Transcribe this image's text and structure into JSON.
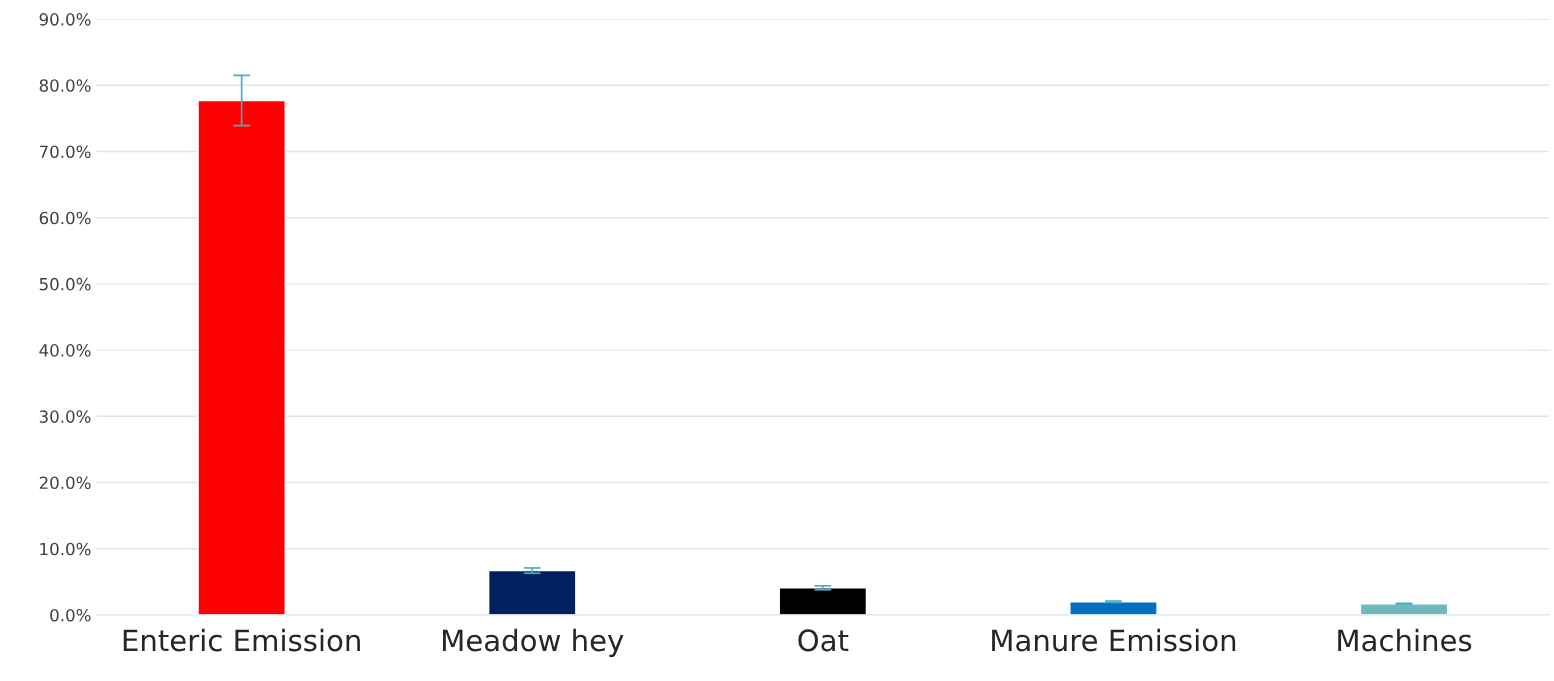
{
  "chart_data": {
    "type": "bar",
    "categories": [
      "Enteric Emission",
      "Meadow hey",
      "Oat",
      "Manure Emission",
      "Machines"
    ],
    "values": [
      77.7,
      6.7,
      4.1,
      2.0,
      1.7
    ],
    "colors": [
      "#ff0000",
      "#002060",
      "#000000",
      "#0070c0",
      "#70b8c0"
    ],
    "errors": [
      3.8,
      0.4,
      0.3,
      0.1,
      0.05
    ],
    "ylim": [
      0,
      90
    ],
    "yticks": [
      {
        "value": 0,
        "label": "0.0%"
      },
      {
        "value": 10,
        "label": "10.0%"
      },
      {
        "value": 20,
        "label": "20.0%"
      },
      {
        "value": 30,
        "label": "30.0%"
      },
      {
        "value": 40,
        "label": "40.0%"
      },
      {
        "value": 50,
        "label": "50.0%"
      },
      {
        "value": 60,
        "label": "60.0%"
      },
      {
        "value": 70,
        "label": "70.0%"
      },
      {
        "value": 80,
        "label": "80.0%"
      },
      {
        "value": 90,
        "label": "90.0%"
      }
    ],
    "grid": "y"
  }
}
